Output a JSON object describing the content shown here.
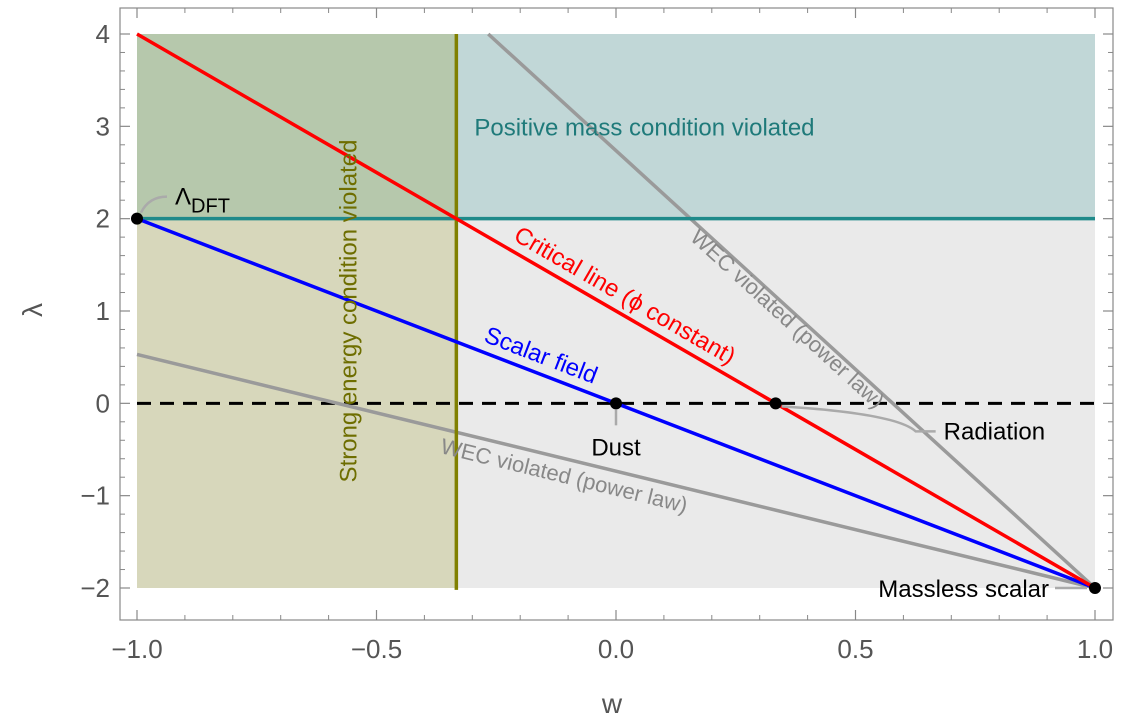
{
  "chart_data": {
    "type": "line",
    "xlabel": "w",
    "ylabel": "λ",
    "xlim": [
      -1.0,
      1.0
    ],
    "ylim": [
      -2,
      4
    ],
    "xticks": [
      -1.0,
      -0.5,
      0.0,
      0.5,
      1.0
    ],
    "xtick_labels": [
      "−1.0",
      "−0.5",
      "0.0",
      "0.5",
      "1.0"
    ],
    "yticks": [
      -2,
      -1,
      0,
      1,
      2,
      3,
      4
    ],
    "ytick_labels": [
      "−2",
      "−1",
      "0",
      "1",
      "2",
      "3",
      "4"
    ],
    "regions": [
      {
        "label": "Positive mass condition violated",
        "x": [
          -1.0,
          1.0
        ],
        "y": [
          2,
          4
        ],
        "color": "#1f8a8a"
      },
      {
        "label": "Strong energy condition violated",
        "x": [
          -1.0,
          -0.3333
        ],
        "y": [
          -2,
          4
        ],
        "color": "#8a8a00"
      },
      {
        "label": "",
        "x": [
          -1.0,
          1.0
        ],
        "y": [
          -2,
          4
        ],
        "color": "#dcdcdc"
      }
    ],
    "series": [
      {
        "name": "Critical line (ϕ constant)",
        "color": "#ff0000",
        "x": [
          -1.0,
          1.0
        ],
        "y": [
          4,
          -2
        ]
      },
      {
        "name": "Scalar field",
        "color": "#0000ff",
        "x": [
          -1.0,
          1.0
        ],
        "y": [
          2,
          -2
        ]
      },
      {
        "name": "WEC violated (power law)",
        "color": "#9a9a9a",
        "x": [
          -0.2667,
          1.0
        ],
        "y": [
          4,
          -2
        ]
      },
      {
        "name": "WEC violated (power law)",
        "color": "#9a9a9a",
        "x": [
          -1.0,
          1.0
        ],
        "y": [
          0.53,
          -2
        ]
      },
      {
        "name": "",
        "color": "#1f8a8a",
        "x": [
          -1.0,
          1.0
        ],
        "y": [
          2,
          2
        ]
      },
      {
        "name": "",
        "color": "#808000",
        "x": [
          -0.3333,
          -0.3333
        ],
        "y": [
          -2.02,
          4
        ]
      },
      {
        "name": "",
        "color": "#000000",
        "dashed": true,
        "x": [
          -1.0,
          1.0
        ],
        "y": [
          0,
          0
        ]
      }
    ],
    "points": [
      {
        "label": "Λ",
        "label_sub": "DFT",
        "x": -1.0,
        "y": 2
      },
      {
        "label": "Dust",
        "x": 0.0,
        "y": 0
      },
      {
        "label": "Radiation",
        "x": 0.3333,
        "y": 0
      },
      {
        "label": "Massless scalar",
        "x": 1.0,
        "y": -2
      }
    ]
  }
}
